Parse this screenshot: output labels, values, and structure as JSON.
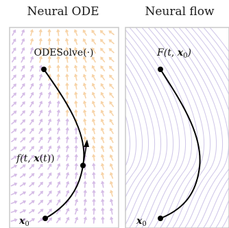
{
  "panels": [
    {
      "title": "Neural ODE",
      "top_label": "ODESolve(·)",
      "mid_label": {
        "pre": "f(",
        "t": "t",
        "sep": ", ",
        "x": "x",
        "paren": "(",
        "t2": "t",
        "post": "))"
      },
      "bottom_label": {
        "x": "x",
        "sub": "0"
      }
    },
    {
      "title": "Neural flow",
      "top_label": {
        "pre": "F(",
        "t": "t",
        "sep": ", ",
        "x": "x",
        "sub": "0",
        "post": ")"
      },
      "bottom_label": {
        "x": "x",
        "sub": "0"
      }
    }
  ],
  "colors": {
    "frame": "#c8c8c8",
    "trajectory": "#000000",
    "vector_field_warm": "#f4c48a",
    "vector_field_cool": "#c7a6de",
    "flow_lines": "#c9bfe6"
  }
}
